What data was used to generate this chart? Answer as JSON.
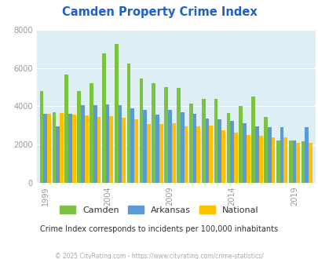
{
  "title": "Camden Property Crime Index",
  "title_color": "#2060cc",
  "subtitle": "Crime Index corresponds to incidents per 100,000 inhabitants",
  "subtitle_color": "#333333",
  "footer": "© 2025 CityRating.com - https://www.cityrating.com/crime-statistics/",
  "footer_color": "#aaaaaa",
  "years": [
    1999,
    2000,
    2001,
    2002,
    2003,
    2004,
    2005,
    2006,
    2007,
    2008,
    2009,
    2010,
    2011,
    2012,
    2013,
    2014,
    2015,
    2016,
    2017,
    2018,
    2019,
    2020
  ],
  "camden": [
    4800,
    3700,
    5650,
    4800,
    5200,
    6750,
    7250,
    6250,
    5450,
    5200,
    5000,
    4950,
    4150,
    4400,
    4400,
    3650,
    4000,
    4500,
    3450,
    2200,
    2200,
    2150
  ],
  "arkansas": [
    3600,
    2950,
    3600,
    4050,
    4050,
    4100,
    4050,
    3900,
    3800,
    3550,
    3800,
    3700,
    3600,
    3350,
    3300,
    3250,
    3100,
    2950,
    2900,
    2900,
    2200,
    2900
  ],
  "national": [
    3600,
    3650,
    3550,
    3500,
    3450,
    3480,
    3400,
    3300,
    3050,
    3050,
    3100,
    2950,
    2950,
    3000,
    2750,
    2600,
    2500,
    2450,
    2350,
    2350,
    2100,
    2100
  ],
  "camden_color": "#7dc142",
  "arkansas_color": "#5b9bd5",
  "national_color": "#ffc000",
  "bg_color": "#ffffff",
  "plot_bg": "#ddeef4",
  "ylim": [
    0,
    8000
  ],
  "yticks": [
    0,
    2000,
    4000,
    6000,
    8000
  ],
  "xtick_years": [
    1999,
    2004,
    2009,
    2014,
    2019
  ]
}
